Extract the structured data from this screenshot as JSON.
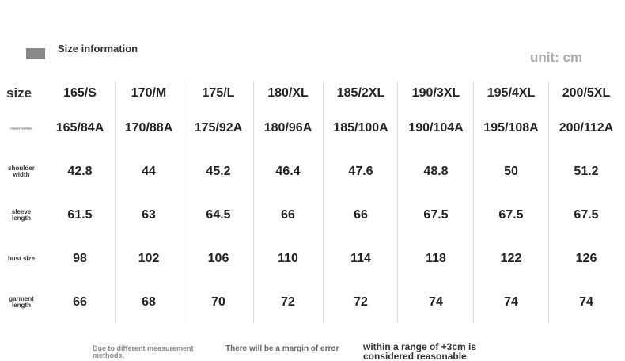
{
  "header": {
    "title": "Size information",
    "unit": "unit: cm"
  },
  "table": {
    "columns": [
      "165/S",
      "170/M",
      "175/L",
      "180/XL",
      "185/2XL",
      "190/3XL",
      "195/4XL",
      "200/5XL"
    ],
    "rows": [
      {
        "label": "size",
        "cells": [
          "165/S",
          "170/M",
          "175/L",
          "180/XL",
          "185/2XL",
          "190/3XL",
          "195/4XL",
          "200/5XL"
        ]
      },
      {
        "label": "model number",
        "cells": [
          "165/84A",
          "170/88A",
          "175/92A",
          "180/96A",
          "185/100A",
          "190/104A",
          "195/108A",
          "200/112A"
        ]
      },
      {
        "label": "shoulder width",
        "cells": [
          42.8,
          44,
          45.2,
          46.4,
          47.6,
          48.8,
          50,
          51.2
        ]
      },
      {
        "label": "sleeve length",
        "cells": [
          61.5,
          63,
          64.5,
          66,
          66,
          67.5,
          67.5,
          67.5
        ]
      },
      {
        "label": "bust size",
        "cells": [
          98,
          102,
          106,
          110,
          114,
          118,
          122,
          126
        ]
      },
      {
        "label": "garment length",
        "cells": [
          66,
          68,
          70,
          72,
          72,
          74,
          74,
          74
        ]
      }
    ]
  },
  "footer": [
    "Due to different measurement methods,",
    "There will be a margin of error",
    "within a range of +3cm is considered reasonable"
  ]
}
